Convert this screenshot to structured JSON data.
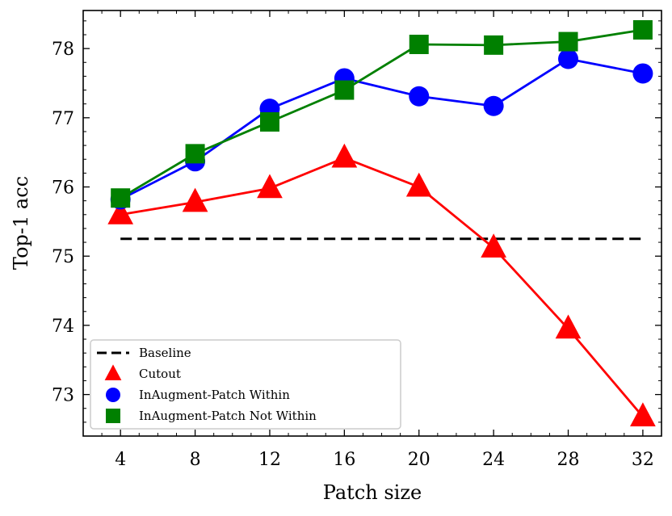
{
  "chart_data": {
    "type": "line",
    "title": "",
    "xlabel": "Patch size",
    "ylabel": "Top-1 acc",
    "x": [
      4,
      8,
      12,
      16,
      20,
      24,
      28,
      32
    ],
    "xlim": [
      2,
      33
    ],
    "ylim": [
      72.4,
      78.55
    ],
    "xticks": [
      4,
      8,
      12,
      16,
      20,
      24,
      28,
      32
    ],
    "yticks": [
      73,
      74,
      75,
      76,
      77,
      78
    ],
    "baseline": {
      "name": "Baseline",
      "value": 75.25,
      "color": "#000000",
      "style": "dashed"
    },
    "series": [
      {
        "name": "Cutout",
        "color": "#ff0000",
        "marker": "triangle",
        "values": [
          75.6,
          75.78,
          75.98,
          76.42,
          76.0,
          75.12,
          73.95,
          72.68
        ]
      },
      {
        "name": "InAugment-Patch Within",
        "color": "#0000ff",
        "marker": "circle",
        "values": [
          75.82,
          76.37,
          77.13,
          77.57,
          77.31,
          77.17,
          77.85,
          77.64
        ]
      },
      {
        "name": "InAugment-Patch Not Within",
        "color": "#008000",
        "marker": "square",
        "values": [
          75.84,
          76.48,
          76.94,
          77.4,
          78.06,
          78.05,
          78.1,
          78.27
        ]
      }
    ],
    "grid": false,
    "legend": {
      "position": "bottom-left",
      "entries": [
        "Baseline",
        "Cutout",
        "InAugment-Patch Within",
        "InAugment-Patch Not Within"
      ]
    }
  }
}
